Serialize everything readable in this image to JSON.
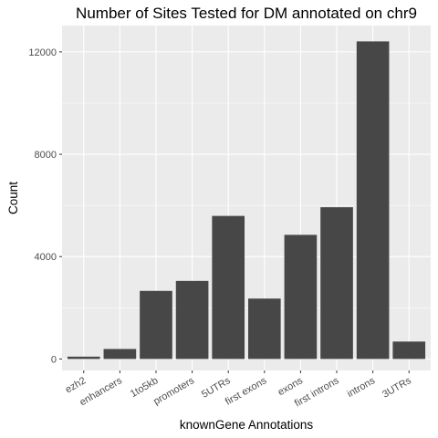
{
  "chart_data": {
    "type": "bar",
    "title": "Number of Sites Tested for DM annotated on chr9",
    "xlabel": "knownGene Annotations",
    "ylabel": "Count",
    "categories": [
      "ezh2",
      "enhancers",
      "1to5kb",
      "promoters",
      "5UTRs",
      "first exons",
      "exons",
      "first introns",
      "introns",
      "3UTRs"
    ],
    "values": [
      90,
      390,
      2660,
      3050,
      5590,
      2360,
      4850,
      5930,
      12410,
      680
    ],
    "ylim": [
      -450,
      13030
    ],
    "yticks": [
      0,
      4000,
      8000,
      12000
    ],
    "ytick_labels": [
      "0",
      "4000",
      "8000",
      "12000"
    ],
    "grid": true,
    "legend": "none",
    "colors": {
      "bar": "#474747",
      "panel": "#ebebeb",
      "grid_major": "#ffffff",
      "tick_text": "#4d4d4d"
    }
  }
}
